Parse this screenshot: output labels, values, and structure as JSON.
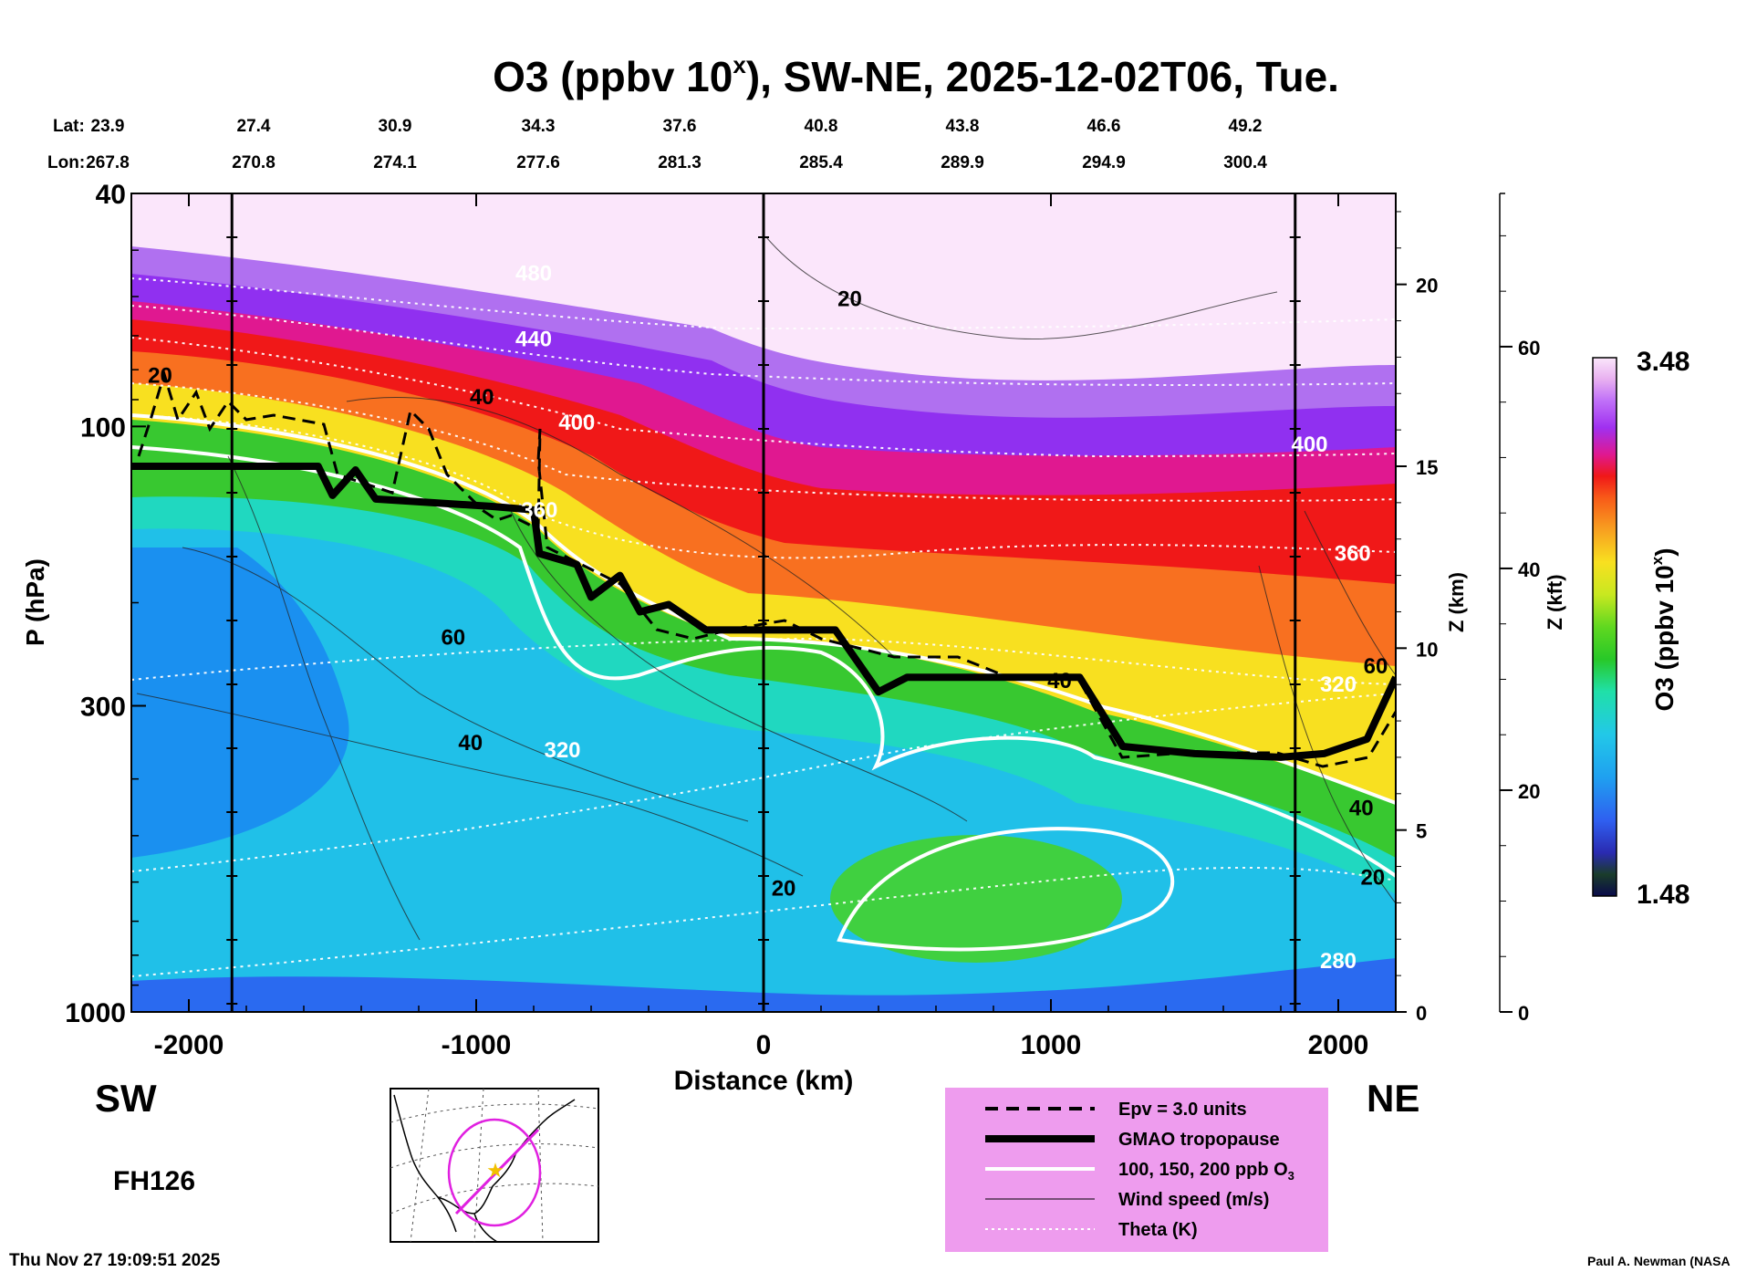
{
  "chart_data": {
    "type": "heatmap",
    "title": "O3 (ppbv 10",
    "title_sup": "x",
    "title_rest": "), SW-NE, 2025-12-02T06, Tue.",
    "xlabel": "Distance (km)",
    "ylabel": "P (hPa)",
    "y2label": "Z (km)",
    "y3label": "Z (kft)",
    "xlim": [
      -2200,
      2200
    ],
    "ylim_hpa": [
      1000,
      40
    ],
    "x_ticks": [
      "-2000",
      "-1000",
      "0",
      "1000",
      "2000"
    ],
    "x_tick_values": [
      -2000,
      -1000,
      0,
      1000,
      2000
    ],
    "y_ticks": [
      "40",
      "100",
      "300",
      "1000"
    ],
    "y_tick_values": [
      40,
      100,
      300,
      1000
    ],
    "z_km_ticks": [
      "0",
      "5",
      "10",
      "15",
      "20"
    ],
    "z_km_values": [
      0,
      5,
      10,
      15,
      20
    ],
    "z_kft_ticks": [
      "0",
      "20",
      "40",
      "60"
    ],
    "z_kft_values": [
      0,
      20,
      40,
      60
    ],
    "lat_label": "Lat:",
    "lon_label": "Lon:",
    "lats": [
      "23.9",
      "27.4",
      "30.9",
      "34.3",
      "37.6",
      "40.8",
      "43.8",
      "46.6",
      "49.2"
    ],
    "lons": [
      "267.8",
      "270.8",
      "274.1",
      "277.6",
      "281.3",
      "285.4",
      "289.9",
      "294.9",
      "300.4"
    ],
    "vertical_marker_km": [
      -1850,
      0,
      1850
    ],
    "colorbar": {
      "label": "O3 (ppbv 10",
      "label_sup": "x",
      "label_end": ")",
      "max": "3.48",
      "min": "1.48"
    },
    "left_label": "SW",
    "right_label": "NE",
    "forecast_hour": "FH126",
    "tropopause_km": [
      [
        -2200,
        15.0
      ],
      [
        -1550,
        15.0
      ],
      [
        -1500,
        14.2
      ],
      [
        -1420,
        14.9
      ],
      [
        -1350,
        14.1
      ],
      [
        -950,
        13.9
      ],
      [
        -800,
        13.8
      ],
      [
        -780,
        12.6
      ],
      [
        -650,
        12.3
      ],
      [
        -600,
        11.4
      ],
      [
        -500,
        12.0
      ],
      [
        -430,
        11.0
      ],
      [
        -330,
        11.2
      ],
      [
        -200,
        10.5
      ],
      [
        250,
        10.5
      ],
      [
        400,
        8.8
      ],
      [
        500,
        9.2
      ],
      [
        1000,
        9.2
      ],
      [
        1100,
        9.2
      ],
      [
        1250,
        7.3
      ],
      [
        1500,
        7.1
      ],
      [
        1800,
        7.0
      ],
      [
        1950,
        7.1
      ],
      [
        2100,
        7.5
      ],
      [
        2200,
        9.2
      ]
    ],
    "theta_labels": [
      {
        "text": "320",
        "x": -700,
        "z": 7.0
      },
      {
        "text": "360",
        "x": -780,
        "z": 13.6
      },
      {
        "text": "400",
        "x": -650,
        "z": 16.0
      },
      {
        "text": "440",
        "x": -800,
        "z": 18.3
      },
      {
        "text": "480",
        "x": -800,
        "z": 20.1
      },
      {
        "text": "400",
        "x": 1900,
        "z": 15.4
      },
      {
        "text": "360",
        "x": 2050,
        "z": 12.4
      },
      {
        "text": "320",
        "x": 2000,
        "z": 8.8
      },
      {
        "text": "280",
        "x": 2000,
        "z": 1.2
      }
    ],
    "wind_labels": [
      {
        "text": "20",
        "x": 300,
        "z": 19.4
      },
      {
        "text": "40",
        "x": -980,
        "z": 16.7
      },
      {
        "text": "60",
        "x": -1080,
        "z": 10.1
      },
      {
        "text": "40",
        "x": -1020,
        "z": 7.2
      },
      {
        "text": "20",
        "x": -2100,
        "z": 17.3
      },
      {
        "text": "40",
        "x": 1030,
        "z": 8.9
      },
      {
        "text": "20",
        "x": 70,
        "z": 3.2
      },
      {
        "text": "60",
        "x": 2130,
        "z": 9.3
      },
      {
        "text": "40",
        "x": 2080,
        "z": 5.4
      },
      {
        "text": "20",
        "x": 2120,
        "z": 3.5
      }
    ]
  },
  "legend": {
    "items": [
      {
        "label": "Epv = 3.0 units",
        "style": "dashed"
      },
      {
        "label": "GMAO tropopause",
        "style": "thick"
      },
      {
        "label": "100, 150, 200 ppb O",
        "sub": "3",
        "style": "white"
      },
      {
        "label": "Wind speed (m/s)",
        "style": "thin"
      },
      {
        "label": "Theta (K)",
        "style": "dotted"
      }
    ]
  },
  "footer": {
    "timestamp": "Thu Nov 27 19:09:51 2025",
    "credit": "Paul A. Newman (NASA"
  },
  "colors": {
    "tropopause": "#000000",
    "legend_bg": "#ee9cee",
    "map_track": "#e020e0",
    "map_star": "#f2c000"
  }
}
